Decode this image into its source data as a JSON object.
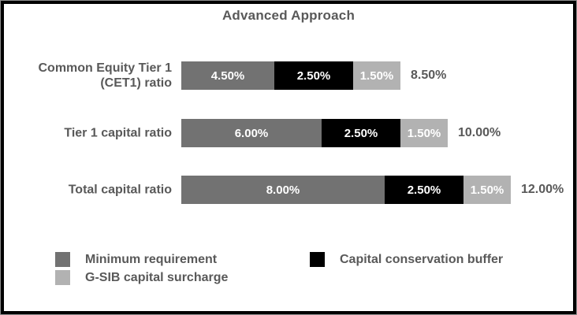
{
  "title": "Advanced Approach",
  "colors": {
    "minimum": "#727272",
    "buffer": "#000000",
    "gsib": "#b2b2b2",
    "text": "#595959",
    "segment_text": "#ffffff",
    "frame_border": "#000000"
  },
  "chart_data": {
    "type": "bar",
    "orientation": "horizontal",
    "stacked": true,
    "title": "Advanced Approach",
    "categories": [
      "Common Equity Tier 1 (CET1) ratio",
      "Tier 1 capital ratio",
      "Total capital ratio"
    ],
    "series": [
      {
        "name": "Minimum requirement",
        "key": "minimum",
        "color": "#727272",
        "values": [
          4.5,
          6.0,
          8.0
        ]
      },
      {
        "name": "Capital conservation buffer",
        "key": "buffer",
        "color": "#000000",
        "values": [
          2.5,
          2.5,
          2.5
        ]
      },
      {
        "name": "G-SIB capital surcharge",
        "key": "gsib",
        "color": "#b2b2b2",
        "values": [
          1.5,
          1.5,
          1.5
        ]
      }
    ],
    "segment_labels": [
      [
        "4.50%",
        "2.50%",
        "1.50%"
      ],
      [
        "6.00%",
        "2.50%",
        "1.50%"
      ],
      [
        "8.00%",
        "2.50%",
        "1.50%"
      ]
    ],
    "totals": [
      8.5,
      10.0,
      12.0
    ],
    "total_labels": [
      "8.50%",
      "10.00%",
      "12.00%"
    ],
    "legend_position": "bottom",
    "grid": false,
    "axes_visible": false
  },
  "legend": {
    "columns": [
      [
        {
          "label": "Minimum requirement",
          "key": "minimum",
          "color": "#727272"
        },
        {
          "label": "G-SIB capital surcharge",
          "key": "gsib",
          "color": "#b2b2b2"
        }
      ],
      [
        {
          "label": "Capital conservation buffer",
          "key": "buffer",
          "color": "#000000"
        }
      ]
    ]
  }
}
